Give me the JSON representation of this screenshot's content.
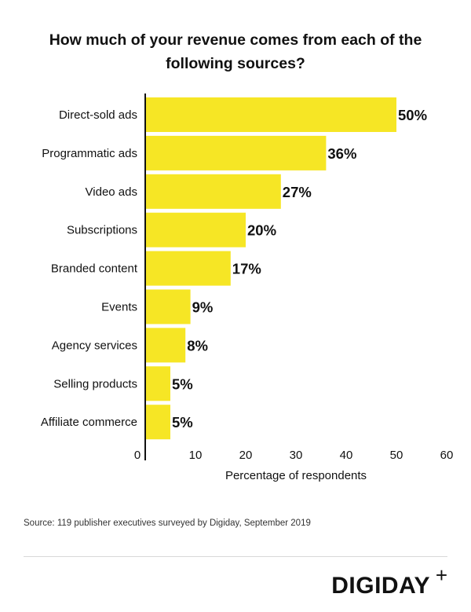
{
  "chart_data": {
    "type": "bar",
    "orientation": "horizontal",
    "title": "How much of your revenue comes from each of the following sources?",
    "categories": [
      "Direct-sold ads",
      "Programmatic ads",
      "Video ads",
      "Subscriptions",
      "Branded content",
      "Events",
      "Agency services",
      "Selling products",
      "Affiliate commerce"
    ],
    "values": [
      50,
      36,
      27,
      20,
      17,
      9,
      8,
      5,
      5
    ],
    "value_labels": [
      "50%",
      "36%",
      "27%",
      "20%",
      "17%",
      "9%",
      "8%",
      "5%",
      "5%"
    ],
    "xlabel": "Percentage of respondents",
    "ylabel": "",
    "xlim": [
      0,
      60
    ],
    "xticks": [
      0,
      10,
      20,
      30,
      40,
      50,
      60
    ],
    "grid": false,
    "bar_color": "#F6E625"
  },
  "source": "Source: 119 publisher executives surveyed by Digiday, September 2019",
  "brand": {
    "name": "DIGIDAY",
    "plus": "+"
  }
}
